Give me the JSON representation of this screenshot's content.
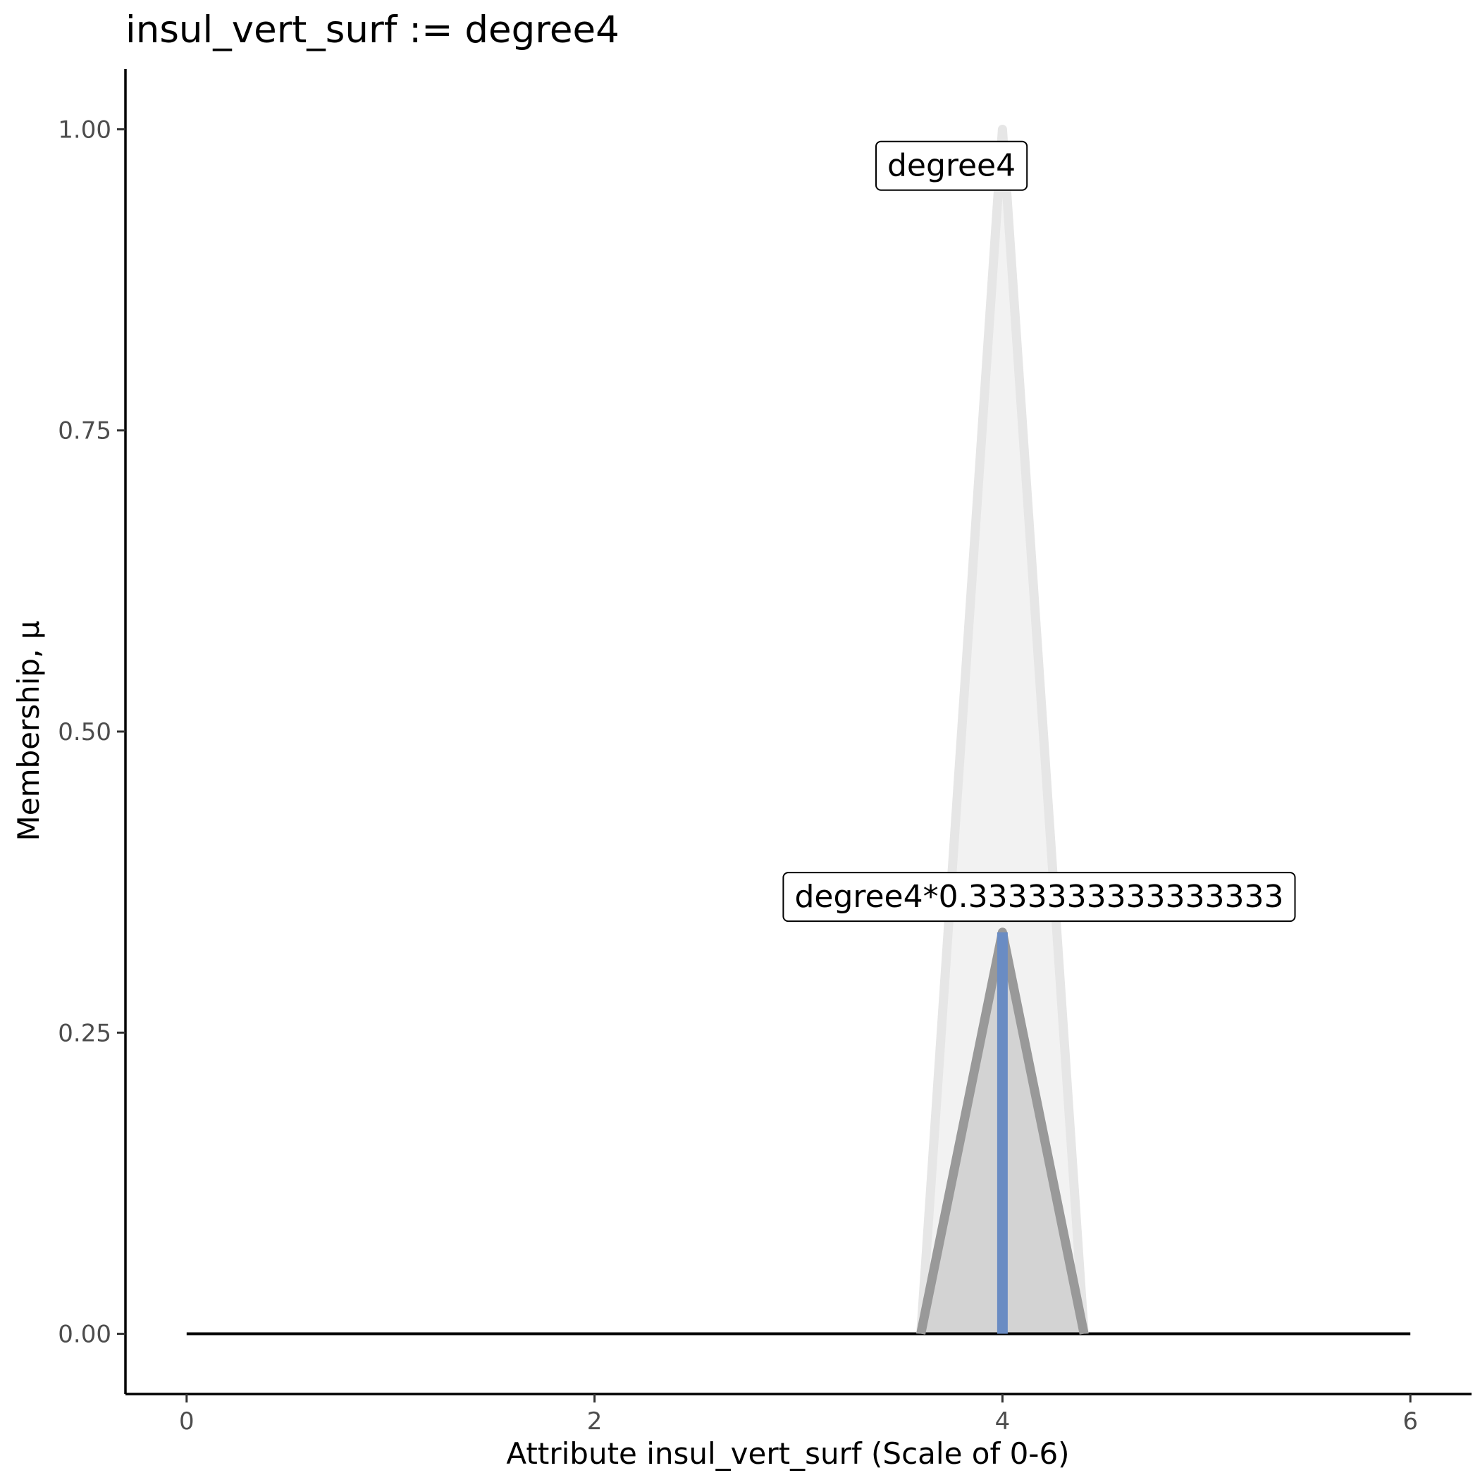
{
  "chart_data": {
    "type": "line",
    "title": "insul_vert_surf := degree4",
    "xlabel": "Attribute insul_vert_surf (Scale of 0-6)",
    "ylabel": "Membership, μ",
    "xlim": [
      -0.3,
      6.3
    ],
    "ylim": [
      -0.05,
      1.05
    ],
    "x_ticks": [
      0,
      2,
      4,
      6
    ],
    "x_tick_labels": [
      "0",
      "2",
      "4",
      "6"
    ],
    "y_ticks": [
      0.0,
      0.25,
      0.5,
      0.75,
      1.0
    ],
    "y_tick_labels": [
      "0.00",
      "0.25",
      "0.50",
      "0.75",
      "1.00"
    ],
    "grid": false,
    "series": [
      {
        "label": "degree4",
        "x": [
          3.6,
          4.0,
          4.4
        ],
        "y": [
          0,
          1,
          0
        ],
        "stroke": "#e6e6e6",
        "fill": "#f2f2f2"
      },
      {
        "label": "degree4*0.3333333333333333",
        "x": [
          3.6,
          4.0,
          4.4
        ],
        "y": [
          0,
          0.3333333333333333,
          0
        ],
        "stroke": "#999999",
        "fill": "#d3d3d3"
      }
    ],
    "baseline": {
      "x": [
        0,
        6
      ],
      "y": [
        0,
        0
      ],
      "color": "#000000"
    },
    "marker": {
      "x": 4.0,
      "y": [
        0,
        0.3333333333333333
      ],
      "color": "#6a8cc3"
    },
    "annotations": [
      {
        "text": "degree4",
        "x": 3.75,
        "y": 0.97
      },
      {
        "text": "degree4*0.3333333333333333",
        "x": 4.18,
        "y": 0.363
      }
    ]
  }
}
